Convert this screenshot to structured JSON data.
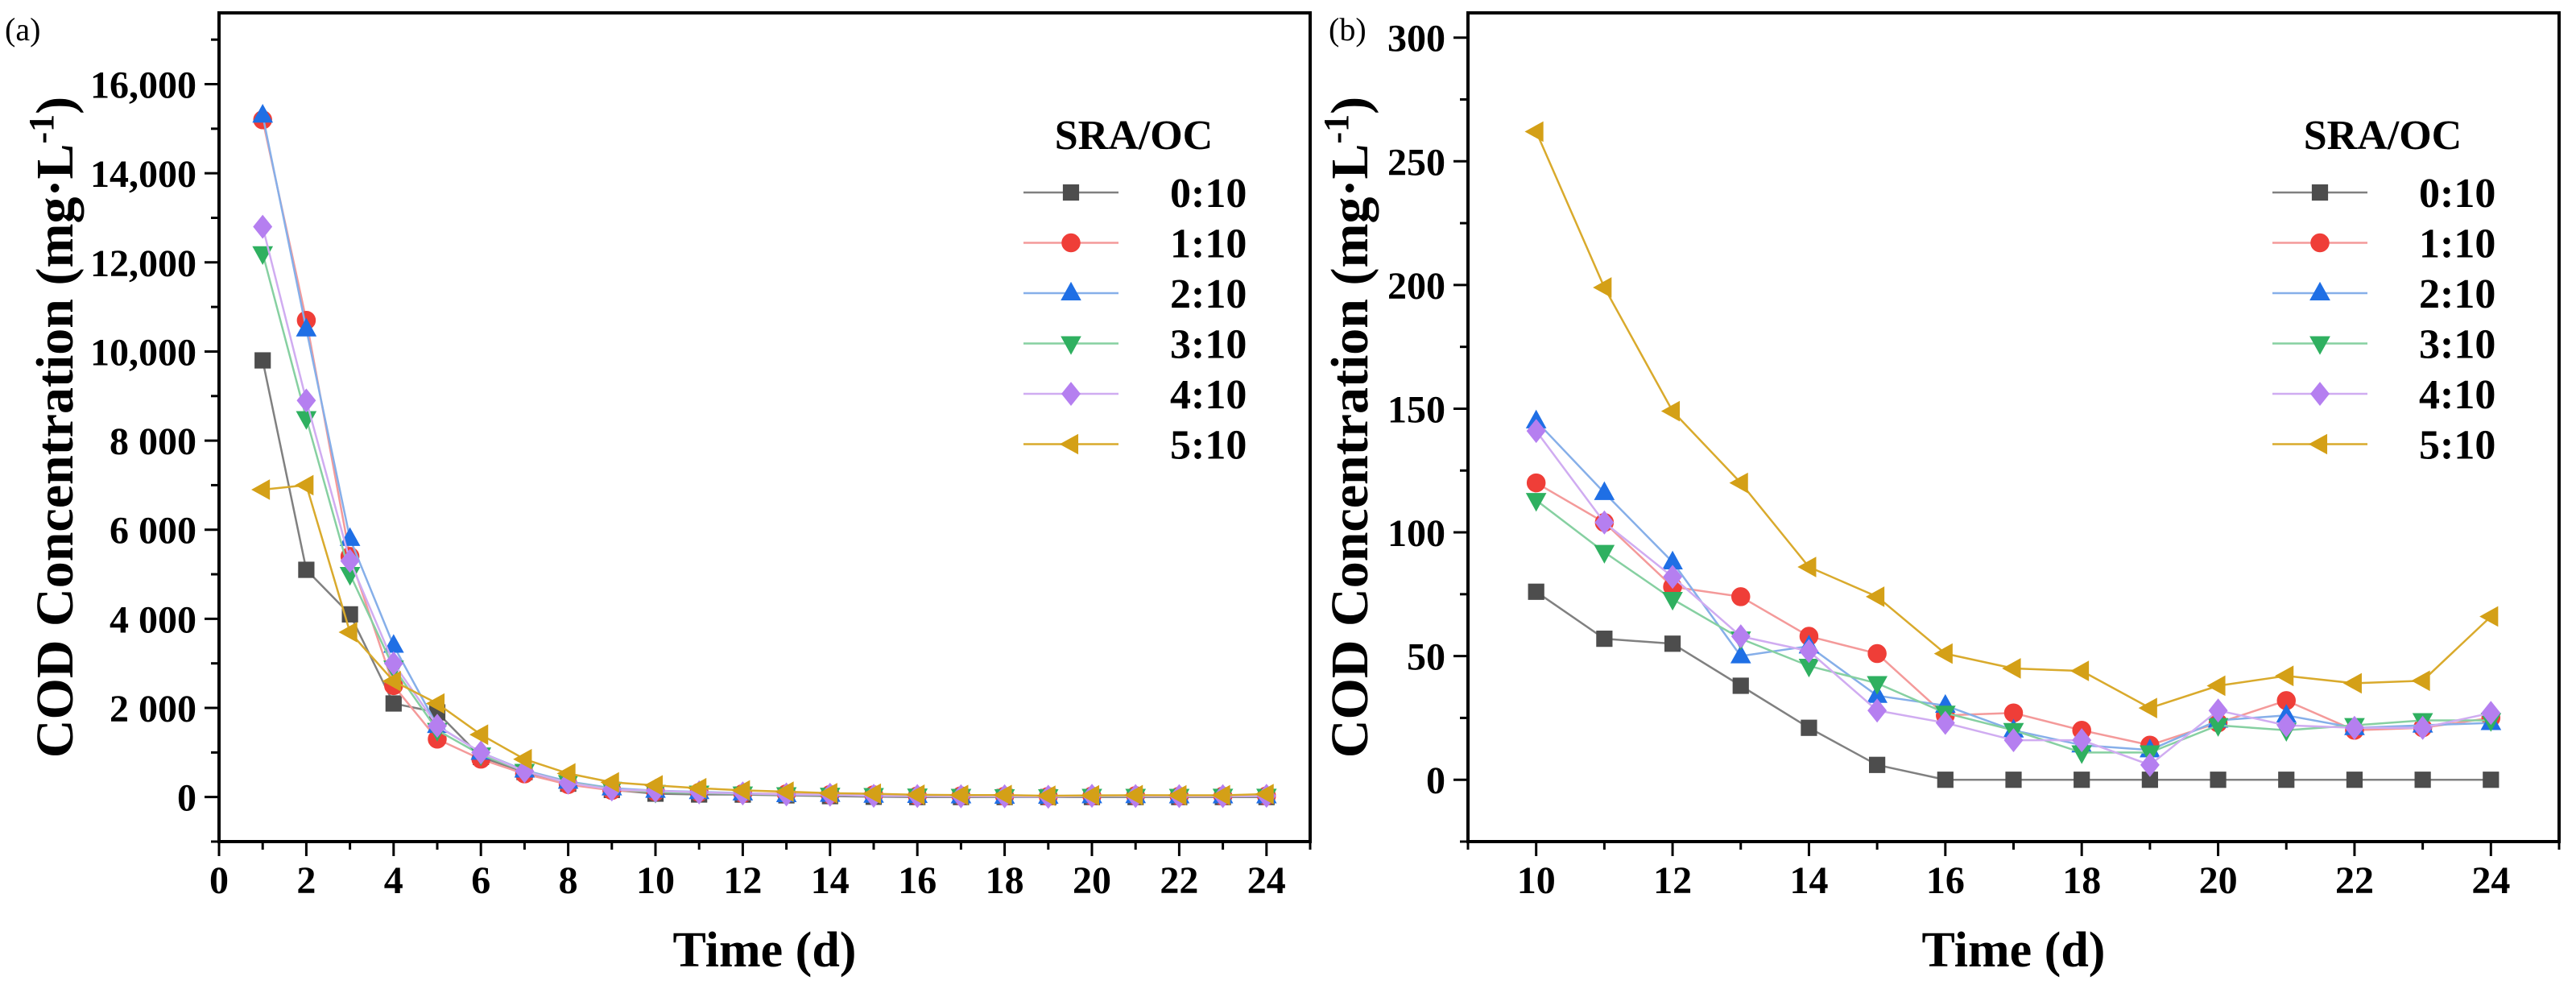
{
  "chart_data": [
    {
      "panel_label": "(a)",
      "type": "line",
      "xlabel": "Time (d)",
      "ylabel": {
        "main": "COD Concentration (mg·L",
        "sup": "-1",
        "end": ")"
      },
      "xlim": [
        0,
        25
      ],
      "ylim": [
        -1000,
        17600
      ],
      "xticks": [
        0,
        2,
        4,
        6,
        8,
        10,
        12,
        14,
        16,
        18,
        20,
        22,
        24
      ],
      "xtick_labels": [
        "0",
        "2",
        "4",
        "6",
        "8",
        "10",
        "12",
        "14",
        "16",
        "18",
        "20",
        "22",
        "24"
      ],
      "xtick_minor_step": 1,
      "yticks": [
        0,
        2000,
        4000,
        6000,
        8000,
        10000,
        12000,
        14000,
        16000
      ],
      "ytick_labels": [
        "0",
        "2 000",
        "4 000",
        "6 000",
        "8 000",
        "10,000",
        "12,000",
        "14,000",
        "16,000"
      ],
      "ytick_minor_step": 1000,
      "grid": false,
      "legend_title": "SRA/OC",
      "legend_position": "top-right",
      "x": [
        1,
        2,
        3,
        4,
        5,
        6,
        7,
        8,
        9,
        10,
        11,
        12,
        13,
        14,
        15,
        16,
        17,
        18,
        19,
        20,
        21,
        22,
        23,
        24
      ],
      "series": [
        {
          "name": "0:10",
          "marker": "square",
          "color": "#4d4d4d",
          "line_color": "#808080",
          "values": [
            9800,
            5100,
            4100,
            2100,
            1900,
            900,
            560,
            300,
            160,
            76,
            57,
            55,
            38,
            21,
            6,
            0,
            0,
            0,
            0,
            0,
            0,
            0,
            0,
            0
          ]
        },
        {
          "name": "1:10",
          "marker": "circle",
          "color": "#ef3e38",
          "line_color": "#f49a9a",
          "values": [
            15200,
            10700,
            5400,
            2500,
            1300,
            850,
            520,
            280,
            150,
            120,
            104,
            78,
            74,
            58,
            51,
            26,
            27,
            20,
            14,
            23,
            32,
            20,
            21,
            25
          ]
        },
        {
          "name": "2:10",
          "marker": "triangle-up",
          "color": "#1f6fe5",
          "line_color": "#86afe9",
          "values": [
            15300,
            10500,
            5800,
            3400,
            1600,
            1000,
            600,
            350,
            200,
            145,
            116,
            88,
            50,
            54,
            34,
            30,
            20,
            14,
            12,
            24,
            26,
            21,
            22,
            23
          ]
        },
        {
          "name": "3:10",
          "marker": "triangle-down",
          "color": "#2fb060",
          "line_color": "#86d0a1",
          "values": [
            12200,
            8500,
            5000,
            2900,
            1500,
            950,
            580,
            330,
            180,
            113,
            92,
            73,
            57,
            46,
            39,
            27,
            20,
            11,
            11,
            22,
            20,
            22,
            24,
            24
          ]
        },
        {
          "name": "4:10",
          "marker": "diamond",
          "color": "#b57ff0",
          "line_color": "#d0acf1",
          "values": [
            12800,
            8900,
            5300,
            3000,
            1600,
            1000,
            580,
            320,
            170,
            141,
            104,
            82,
            58,
            52,
            28,
            23,
            16,
            16,
            6,
            28,
            22,
            21,
            21,
            27
          ]
        },
        {
          "name": "5:10",
          "marker": "triangle-left",
          "color": "#d4a017",
          "line_color": "#d9aa2c",
          "values": [
            6900,
            7000,
            3700,
            2600,
            2100,
            1400,
            850,
            530,
            330,
            262,
            199,
            149,
            120,
            86,
            74,
            51,
            45,
            44,
            29,
            38,
            42,
            39,
            40,
            66
          ]
        }
      ]
    },
    {
      "panel_label": "(b)",
      "type": "line",
      "xlabel": "Time (d)",
      "ylabel": {
        "main": "COD Concentration (mg·L",
        "sup": "-1",
        "end": ")"
      },
      "xlim": [
        9,
        25
      ],
      "ylim": [
        -25,
        310
      ],
      "xticks": [
        10,
        12,
        14,
        16,
        18,
        20,
        22,
        24
      ],
      "xtick_labels": [
        "10",
        "12",
        "14",
        "16",
        "18",
        "20",
        "22",
        "24"
      ],
      "xtick_minor_step": 1,
      "yticks": [
        0,
        50,
        100,
        150,
        200,
        250,
        300
      ],
      "ytick_labels": [
        "0",
        "50",
        "100",
        "150",
        "200",
        "250",
        "300"
      ],
      "ytick_minor_step": 25,
      "grid": false,
      "legend_title": "SRA/OC",
      "legend_position": "top-right",
      "x": [
        10,
        11,
        12,
        13,
        14,
        15,
        16,
        17,
        18,
        19,
        20,
        21,
        22,
        23,
        24
      ],
      "series": [
        {
          "name": "0:10",
          "marker": "square",
          "color": "#4d4d4d",
          "line_color": "#808080",
          "values": [
            76,
            57,
            55,
            38,
            21,
            6,
            0,
            0,
            0,
            0,
            0,
            0,
            0,
            0,
            0
          ]
        },
        {
          "name": "1:10",
          "marker": "circle",
          "color": "#ef3e38",
          "line_color": "#f49a9a",
          "values": [
            120,
            104,
            78,
            74,
            58,
            51,
            26,
            27,
            20,
            14,
            23,
            32,
            20,
            21,
            25
          ]
        },
        {
          "name": "2:10",
          "marker": "triangle-up",
          "color": "#1f6fe5",
          "line_color": "#86afe9",
          "values": [
            145,
            116,
            88,
            50,
            54,
            34,
            30,
            20,
            14,
            12,
            24,
            26,
            21,
            22,
            23
          ]
        },
        {
          "name": "3:10",
          "marker": "triangle-down",
          "color": "#2fb060",
          "line_color": "#86d0a1",
          "values": [
            113,
            92,
            73,
            57,
            46,
            39,
            27,
            20,
            11,
            11,
            22,
            20,
            22,
            24,
            24
          ]
        },
        {
          "name": "4:10",
          "marker": "diamond",
          "color": "#b57ff0",
          "line_color": "#d0acf1",
          "values": [
            141,
            104,
            82,
            58,
            52,
            28,
            23,
            16,
            16,
            6,
            28,
            22,
            21,
            21,
            27
          ]
        },
        {
          "name": "5:10",
          "marker": "triangle-left",
          "color": "#d4a017",
          "line_color": "#d9aa2c",
          "values": [
            262,
            199,
            149,
            120,
            86,
            74,
            51,
            45,
            44,
            29,
            38,
            42,
            39,
            40,
            66
          ]
        }
      ]
    }
  ]
}
